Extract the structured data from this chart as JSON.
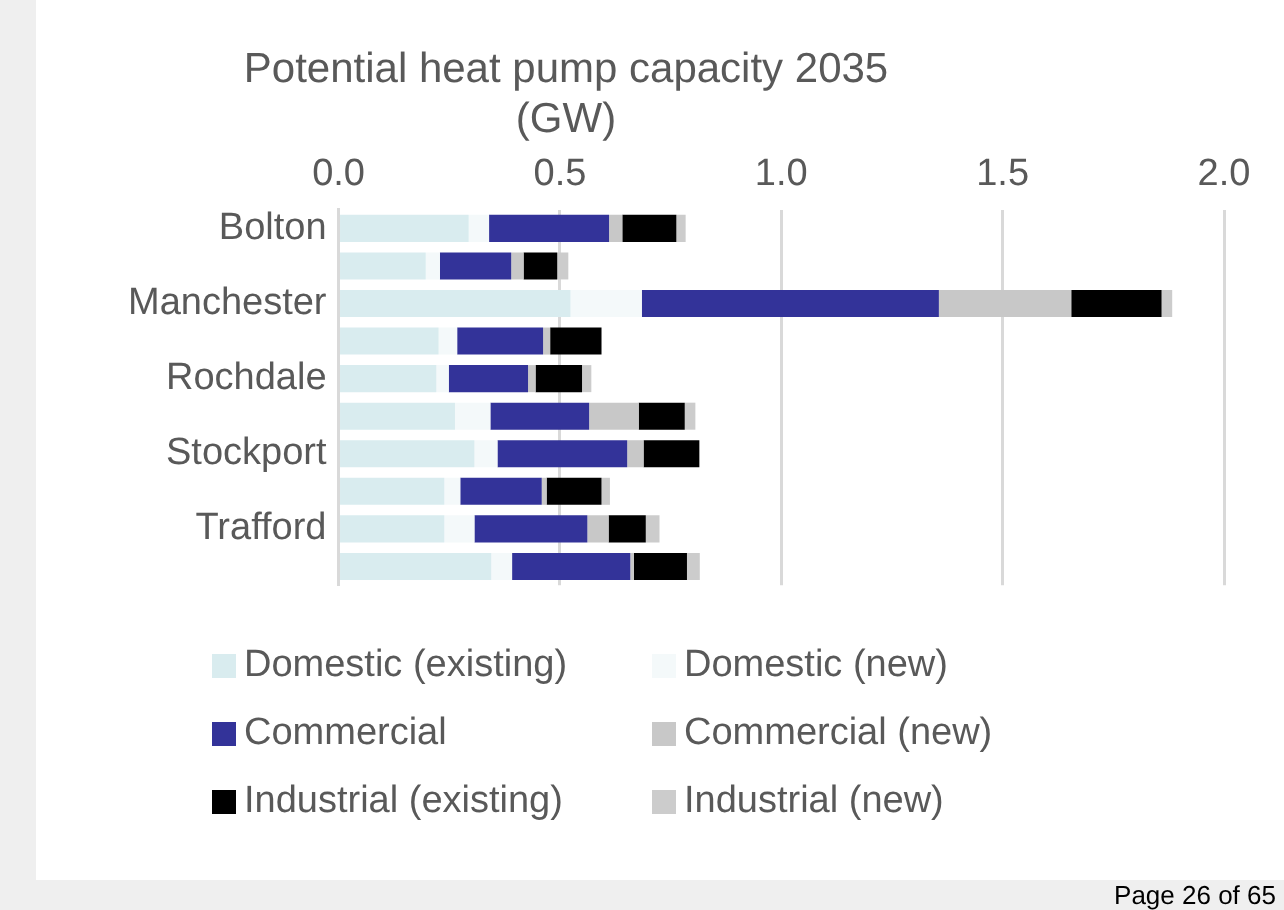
{
  "chart_data": {
    "type": "bar",
    "orientation": "horizontal",
    "stacked": true,
    "title": "Potential heat pump capacity 2035 (GW)",
    "categories": [
      "Bolton",
      null,
      "Manchester",
      null,
      "Rochdale",
      null,
      "Stockport",
      null,
      "Trafford",
      null
    ],
    "series": [
      {
        "name": "Domestic (existing)",
        "color": "#d9ecef",
        "values": [
          0.294,
          0.197,
          0.524,
          0.226,
          0.221,
          0.263,
          0.307,
          0.239,
          0.239,
          0.345
        ]
      },
      {
        "name": "Domestic (new)",
        "color": "#f4f9fa",
        "values": [
          0.046,
          0.032,
          0.161,
          0.042,
          0.028,
          0.08,
          0.052,
          0.036,
          0.068,
          0.047
        ]
      },
      {
        "name": "Commercial",
        "color": "#333399",
        "values": [
          0.271,
          0.161,
          0.671,
          0.194,
          0.179,
          0.223,
          0.293,
          0.184,
          0.255,
          0.267
        ]
      },
      {
        "name": "Commercial (new)",
        "color": "#c8c8c8",
        "values": [
          0.03,
          0.028,
          0.299,
          0.016,
          0.017,
          0.112,
          0.037,
          0.011,
          0.048,
          0.008
        ]
      },
      {
        "name": "Industrial (existing)",
        "color": "#000000",
        "values": [
          0.122,
          0.076,
          0.204,
          0.116,
          0.105,
          0.104,
          0.126,
          0.124,
          0.084,
          0.12
        ]
      },
      {
        "name": "Industrial (new)",
        "color": "#cccccc",
        "values": [
          0.021,
          0.025,
          0.024,
          null,
          0.021,
          0.024,
          null,
          0.019,
          0.031,
          0.029
        ]
      }
    ],
    "xlim": [
      0,
      2
    ],
    "xticks": [
      {
        "value": 0,
        "label": "0.0"
      },
      {
        "value": 0.5,
        "label": "0.5"
      },
      {
        "value": 1,
        "label": "1.0"
      },
      {
        "value": 1.5,
        "label": "1.5"
      },
      {
        "value": 2,
        "label": "2.0"
      }
    ],
    "grid": "x",
    "legend": "bottom",
    "annotations": [
      "Page 26 of 65"
    ]
  }
}
